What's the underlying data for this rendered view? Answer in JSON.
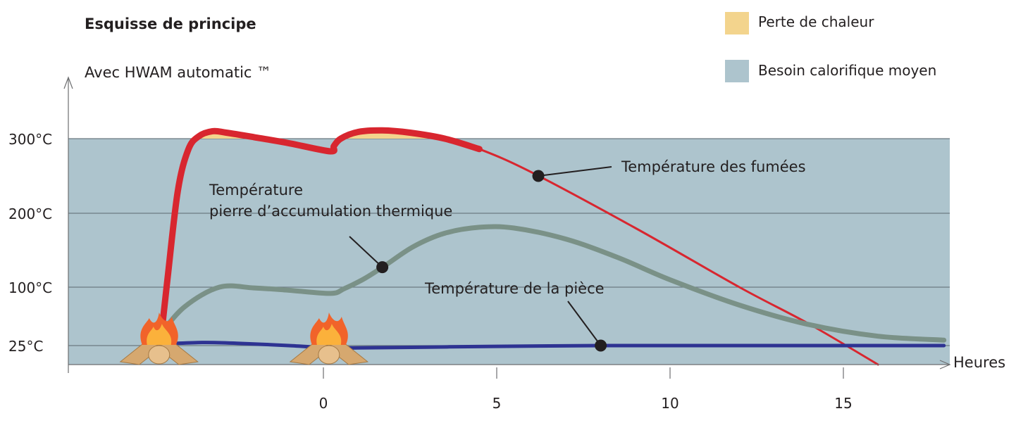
{
  "chart_data": {
    "type": "line",
    "title": "Esquisse de principe",
    "subtitle": "Avec  HWAM automatic ™",
    "xlabel": "Heures",
    "ylabel": "",
    "xlim": [
      -7.2,
      17.9
    ],
    "ylim": [
      0,
      300
    ],
    "x_ticks": [
      0,
      5,
      10,
      15
    ],
    "x_tick_labels": [
      "0",
      "5",
      "10",
      "15"
    ],
    "y_ticks": [
      25,
      100,
      200,
      300
    ],
    "y_tick_labels": [
      "25°C",
      "100°C",
      "200°C",
      "300°C"
    ],
    "grid": true,
    "legend": [
      {
        "label": "Perte de chaleur",
        "color": "#f3d48d"
      },
      {
        "label": "Besoin calorifique moyen",
        "color": "#adc4cd"
      }
    ],
    "band": {
      "name": "Besoin calorifique moyen",
      "from": 0,
      "to": 300,
      "color": "#adc4cd"
    },
    "series": [
      {
        "name": "Température des fumées",
        "color": "#d8262f",
        "x": [
          -4.7,
          -4.5,
          -4.2,
          -3.9,
          -3.6,
          -3.2,
          -2.8,
          -2.0,
          -1.0,
          0.2,
          0.3,
          0.5,
          1.0,
          1.7,
          2.5,
          3.5,
          4.5,
          6.0,
          9.0,
          12.0,
          14.0,
          16.0
        ],
        "y": [
          29,
          110,
          230,
          285,
          303,
          310,
          308,
          302,
          294,
          283,
          290,
          300,
          309,
          311,
          308,
          300,
          286,
          255,
          180,
          100,
          53,
          0
        ]
      },
      {
        "name": "Température pierre d’accumulation thermique",
        "color": "#7a9187",
        "x": [
          -4.7,
          -4.0,
          -3.0,
          -2.0,
          -1.0,
          0.2,
          0.6,
          1.2,
          1.8,
          2.6,
          3.5,
          4.5,
          5.5,
          7.0,
          8.5,
          10.0,
          12.0,
          14.0,
          16.0,
          17.9
        ],
        "y": [
          40,
          75,
          100,
          99,
          96,
          92,
          98,
          112,
          130,
          155,
          173,
          181,
          180,
          165,
          140,
          110,
          77,
          52,
          37,
          32
        ]
      },
      {
        "name": "Température de la pièce",
        "color": "#2e3392",
        "x": [
          -4.7,
          -3.5,
          -2.5,
          -1.0,
          0.2,
          1.0,
          3.0,
          5.0,
          8.0,
          12.0,
          16.0,
          17.9
        ],
        "y": [
          27,
          29,
          28,
          25,
          22,
          22,
          23,
          24,
          25,
          25,
          25,
          25
        ]
      }
    ],
    "heat_loss_fills": [
      {
        "label": "Perte de chaleur",
        "x_from": -3.9,
        "x_to": -0.7
      },
      {
        "label": "Perte de chaleur",
        "x_from": 0.35,
        "x_to": 3.5
      }
    ],
    "annotations": [
      {
        "text": "Température des fumées",
        "series": 0,
        "x": 6.2,
        "y": 250
      },
      {
        "text": "Température",
        "series": 1,
        "x": 1.7,
        "y": 127
      },
      {
        "text": "pierre d’accumulation thermique",
        "series": 1,
        "x": 1.7,
        "y": 127
      },
      {
        "text": "Température de la pièce",
        "series": 2,
        "x": 8.0,
        "y": 25
      }
    ],
    "fire_markers_x": [
      -4.7,
      0.2
    ]
  }
}
